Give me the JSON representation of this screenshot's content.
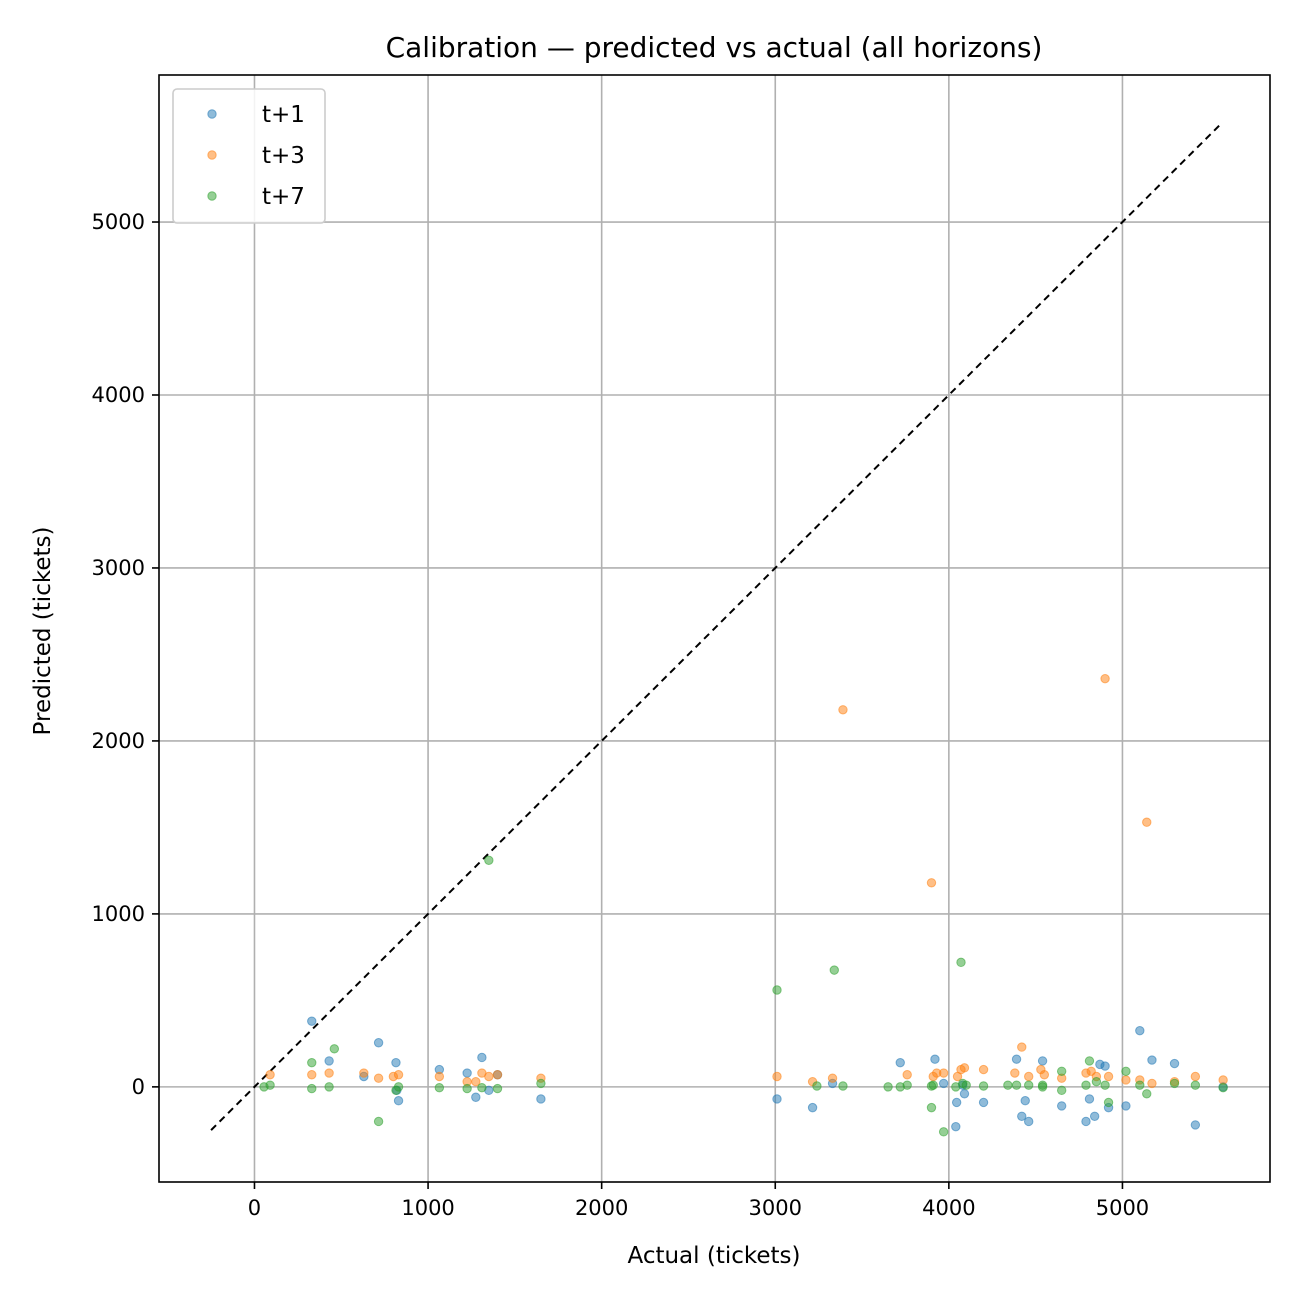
{
  "chart_data": {
    "type": "scatter",
    "title": "Calibration — predicted vs actual (all horizons)",
    "xlabel": "Actual (tickets)",
    "ylabel": "Predicted (tickets)",
    "xlim": [
      -550,
      5850
    ],
    "ylim": [
      -550,
      5850
    ],
    "xticks": [
      0,
      1000,
      2000,
      3000,
      4000,
      5000
    ],
    "yticks": [
      0,
      1000,
      2000,
      3000,
      4000,
      5000
    ],
    "grid": true,
    "legend_position": "top-left",
    "reference_line": {
      "style": "dashed",
      "color": "#000000",
      "from": [
        -250,
        -250
      ],
      "to": [
        5570,
        5570
      ]
    },
    "series": [
      {
        "name": "t+1",
        "color": "#1f77b4",
        "points": [
          [
            330,
            380
          ],
          [
            430,
            150
          ],
          [
            630,
            60
          ],
          [
            715,
            255
          ],
          [
            815,
            140
          ],
          [
            820,
            -20
          ],
          [
            830,
            -80
          ],
          [
            1065,
            100
          ],
          [
            1225,
            80
          ],
          [
            1275,
            -60
          ],
          [
            1310,
            170
          ],
          [
            1350,
            -20
          ],
          [
            1400,
            70
          ],
          [
            1650,
            -70
          ],
          [
            3010,
            -70
          ],
          [
            3215,
            -120
          ],
          [
            3330,
            20
          ],
          [
            3720,
            140
          ],
          [
            3920,
            160
          ],
          [
            3970,
            20
          ],
          [
            4040,
            -230
          ],
          [
            4045,
            -90
          ],
          [
            4080,
            10
          ],
          [
            4090,
            -40
          ],
          [
            4200,
            -90
          ],
          [
            4390,
            160
          ],
          [
            4420,
            -170
          ],
          [
            4440,
            -80
          ],
          [
            4460,
            -200
          ],
          [
            4540,
            150
          ],
          [
            4650,
            -110
          ],
          [
            4790,
            -200
          ],
          [
            4810,
            -70
          ],
          [
            4840,
            -170
          ],
          [
            4870,
            130
          ],
          [
            4900,
            120
          ],
          [
            4920,
            -120
          ],
          [
            5020,
            -110
          ],
          [
            5100,
            325
          ],
          [
            5170,
            155
          ],
          [
            5300,
            135
          ],
          [
            5420,
            -220
          ],
          [
            5580,
            0
          ]
        ]
      },
      {
        "name": "t+3",
        "color": "#ff7f0e",
        "points": [
          [
            90,
            70
          ],
          [
            330,
            70
          ],
          [
            430,
            80
          ],
          [
            630,
            80
          ],
          [
            715,
            50
          ],
          [
            800,
            60
          ],
          [
            830,
            70
          ],
          [
            1065,
            60
          ],
          [
            1225,
            30
          ],
          [
            1275,
            30
          ],
          [
            1310,
            80
          ],
          [
            1350,
            60
          ],
          [
            1400,
            70
          ],
          [
            1650,
            50
          ],
          [
            3010,
            60
          ],
          [
            3215,
            30
          ],
          [
            3330,
            50
          ],
          [
            3390,
            2180
          ],
          [
            3760,
            70
          ],
          [
            3900,
            1180
          ],
          [
            3910,
            60
          ],
          [
            3930,
            80
          ],
          [
            3970,
            80
          ],
          [
            4050,
            60
          ],
          [
            4070,
            100
          ],
          [
            4090,
            110
          ],
          [
            4200,
            100
          ],
          [
            4380,
            80
          ],
          [
            4420,
            230
          ],
          [
            4460,
            60
          ],
          [
            4530,
            100
          ],
          [
            4550,
            70
          ],
          [
            4650,
            50
          ],
          [
            4790,
            80
          ],
          [
            4820,
            90
          ],
          [
            4850,
            60
          ],
          [
            4900,
            2360
          ],
          [
            4920,
            60
          ],
          [
            5020,
            40
          ],
          [
            5100,
            40
          ],
          [
            5140,
            1530
          ],
          [
            5170,
            20
          ],
          [
            5300,
            30
          ],
          [
            5420,
            60
          ],
          [
            5580,
            40
          ]
        ]
      },
      {
        "name": "t+7",
        "color": "#2ca02c",
        "points": [
          [
            55,
            0
          ],
          [
            90,
            10
          ],
          [
            330,
            140
          ],
          [
            330,
            -10
          ],
          [
            430,
            0
          ],
          [
            460,
            220
          ],
          [
            715,
            -200
          ],
          [
            815,
            -20
          ],
          [
            830,
            0
          ],
          [
            1065,
            -5
          ],
          [
            1225,
            -10
          ],
          [
            1310,
            -5
          ],
          [
            1350,
            1310
          ],
          [
            1400,
            -10
          ],
          [
            1650,
            20
          ],
          [
            3010,
            560
          ],
          [
            3240,
            5
          ],
          [
            3340,
            675
          ],
          [
            3390,
            5
          ],
          [
            3650,
            0
          ],
          [
            3720,
            0
          ],
          [
            3760,
            10
          ],
          [
            3900,
            5
          ],
          [
            3900,
            -120
          ],
          [
            3910,
            10
          ],
          [
            3970,
            -260
          ],
          [
            4040,
            0
          ],
          [
            4070,
            720
          ],
          [
            4080,
            20
          ],
          [
            4100,
            10
          ],
          [
            4200,
            5
          ],
          [
            4340,
            10
          ],
          [
            4390,
            10
          ],
          [
            4460,
            10
          ],
          [
            4540,
            0
          ],
          [
            4540,
            10
          ],
          [
            4650,
            -20
          ],
          [
            4650,
            90
          ],
          [
            4790,
            10
          ],
          [
            4810,
            150
          ],
          [
            4850,
            30
          ],
          [
            4900,
            10
          ],
          [
            4920,
            -90
          ],
          [
            5020,
            90
          ],
          [
            5100,
            10
          ],
          [
            5140,
            -40
          ],
          [
            5300,
            20
          ],
          [
            5420,
            10
          ],
          [
            5580,
            -5
          ]
        ]
      }
    ]
  }
}
